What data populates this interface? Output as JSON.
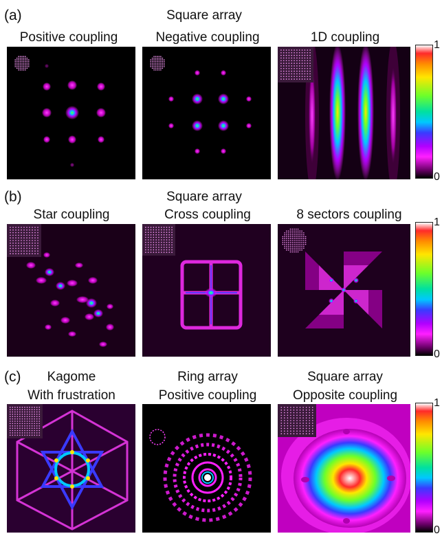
{
  "rows": [
    {
      "letter": "(a)",
      "header": "Square array",
      "titles": [
        "Positive coupling",
        "Negative coupling",
        "1D coupling"
      ],
      "cbar": {
        "max": "1",
        "min": "0"
      }
    },
    {
      "letter": "(b)",
      "header": "Square array",
      "titles": [
        "Star coupling",
        "Cross coupling",
        "8 sectors coupling"
      ],
      "cbar": {
        "max": "1",
        "min": "0"
      }
    },
    {
      "letter": "(c)",
      "titles_line1": [
        "Kagome",
        "Ring array",
        "Square array"
      ],
      "titles_line2": [
        "With frustration",
        "Positive coupling",
        "Opposite coupling"
      ],
      "cbar": {
        "max": "1",
        "min": "0"
      }
    }
  ],
  "colors": {
    "background": "#000000",
    "magenta": "#ff20ff",
    "blue": "#3a3aff",
    "cyan": "#00c8ff",
    "green": "#6dff2a",
    "yellow": "#ffe600",
    "red": "#ff2a2a"
  }
}
